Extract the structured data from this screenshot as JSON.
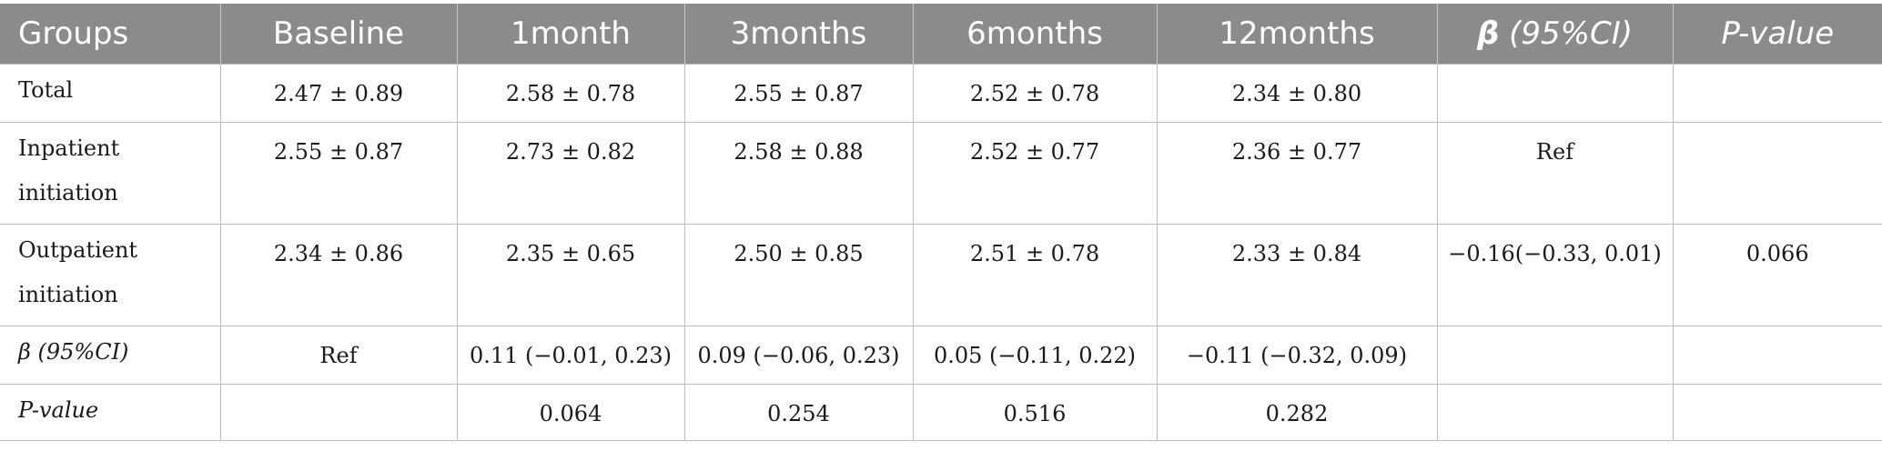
{
  "header": {
    "groups": "Groups",
    "baseline": "Baseline",
    "m1": "1month",
    "m3": "3months",
    "m6": "6months",
    "m12": "12months",
    "beta_symbol": "β",
    "beta_rest": " (95%CI)",
    "pvalue": "P-value"
  },
  "rows": [
    {
      "group": "Total",
      "baseline": "2.47 ± 0.89",
      "m1": "2.58 ± 0.78",
      "m3": "2.55 ± 0.87",
      "m6": "2.52 ± 0.78",
      "m12": "2.34 ± 0.80",
      "beta": "",
      "pvalue": ""
    },
    {
      "group": "Inpatient initiation",
      "baseline": "2.55 ± 0.87",
      "m1": "2.73 ± 0.82",
      "m3": "2.58 ± 0.88",
      "m6": "2.52 ± 0.77",
      "m12": "2.36 ± 0.77",
      "beta": "Ref",
      "pvalue": ""
    },
    {
      "group": "Outpatient initiation",
      "baseline": "2.34 ± 0.86",
      "m1": "2.35 ± 0.65",
      "m3": "2.50 ± 0.85",
      "m6": "2.51 ± 0.78",
      "m12": "2.33 ± 0.84",
      "beta": "−0.16(−0.33, 0.01)",
      "pvalue": "0.066"
    },
    {
      "group": "β (95%CI)",
      "baseline": "Ref",
      "m1": "0.11 (−0.01, 0.23)",
      "m3": "0.09 (−0.06, 0.23)",
      "m6": "0.05 (−0.11, 0.22)",
      "m12": "−0.11 (−0.32, 0.09)",
      "beta": "",
      "pvalue": ""
    },
    {
      "group": "P-value",
      "baseline": "",
      "m1": "0.064",
      "m3": "0.254",
      "m6": "0.516",
      "m12": "0.282",
      "beta": "",
      "pvalue": ""
    }
  ],
  "colors": {
    "header_bg": "#8a8c8a",
    "header_text": "#ffffff",
    "border": "#bdbdbd"
  }
}
